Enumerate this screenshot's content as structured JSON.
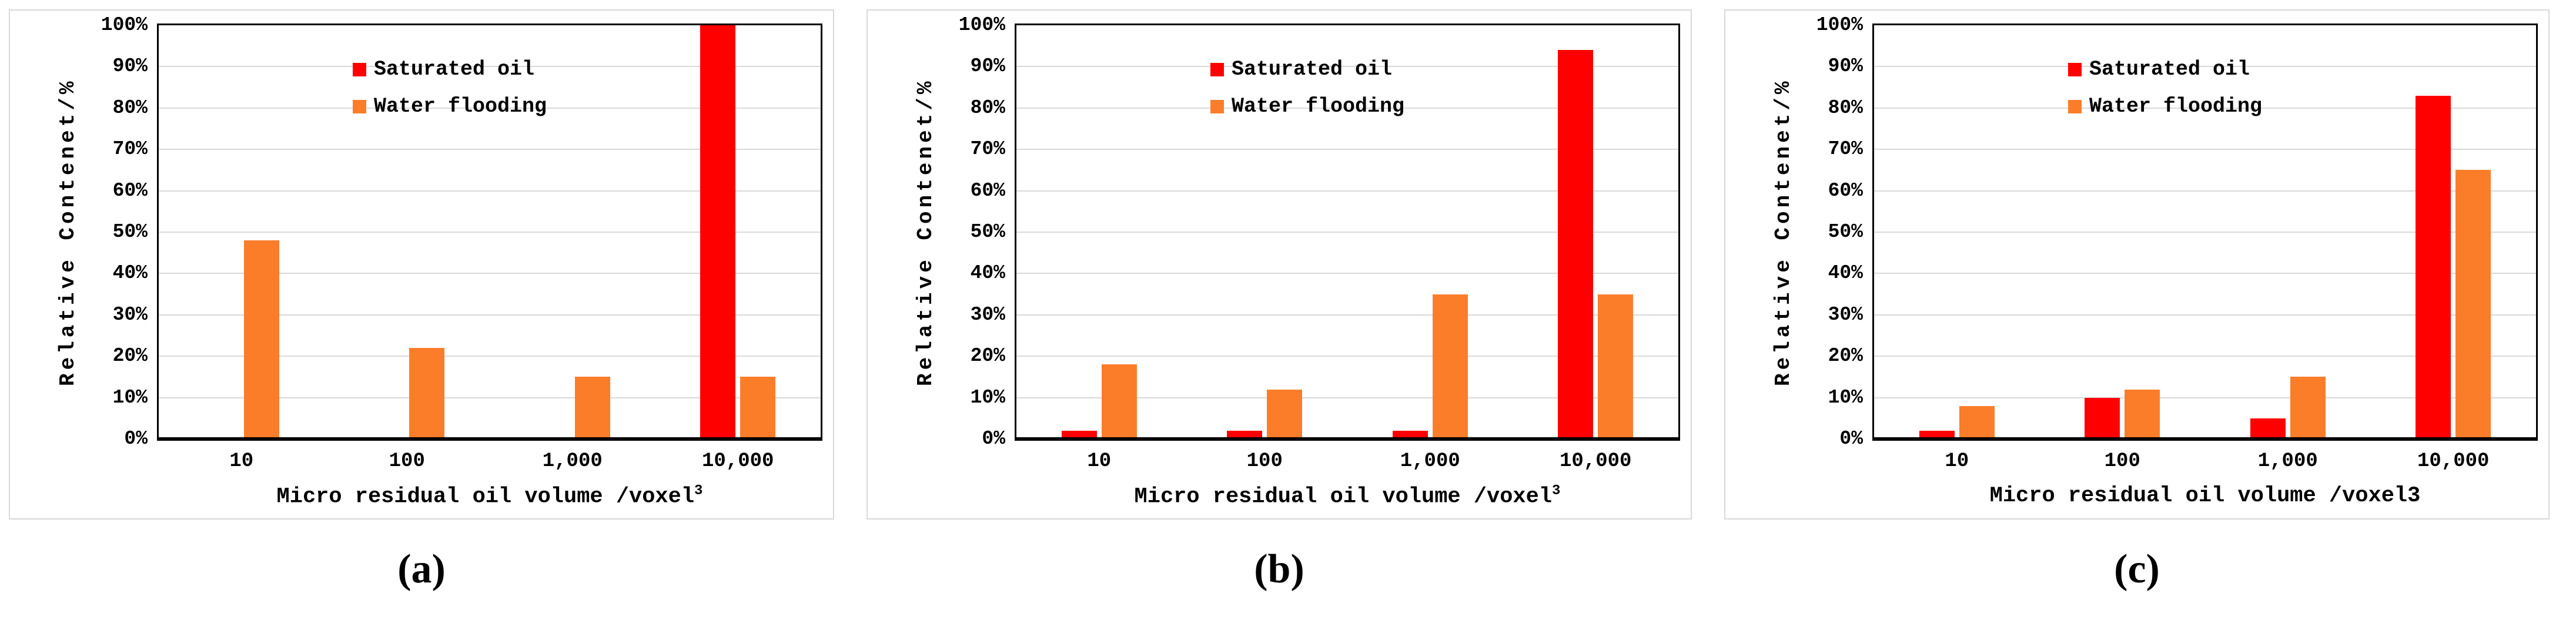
{
  "colors": {
    "saturated_oil": "#FF0000",
    "water_flooding": "#FB7D2A",
    "gridline": "#D9D9D9",
    "plot_border": "#000000",
    "panel_border": "#D9D9D9",
    "text": "#000000"
  },
  "chart_data": [
    {
      "type": "bar",
      "caption": "(a)",
      "title": "",
      "ylabel": "Relative Contenet/%",
      "xlabel": "Micro residual oil volume /voxel",
      "xlabel_sup": "3",
      "categories": [
        "10",
        "100",
        "1,000",
        "10,000"
      ],
      "series": [
        {
          "name": "Saturated oil",
          "color": "#FF0000",
          "values": [
            0,
            0,
            0,
            100
          ]
        },
        {
          "name": "Water flooding",
          "color": "#FB7D2A",
          "values": [
            48,
            22,
            15,
            15
          ]
        }
      ],
      "yticks": [
        "0%",
        "10%",
        "20%",
        "30%",
        "40%",
        "50%",
        "60%",
        "70%",
        "80%",
        "90%",
        "100%"
      ],
      "ylim": [
        0,
        100
      ],
      "grid": true,
      "legend_position": "inside-top-left"
    },
    {
      "type": "bar",
      "caption": "(b)",
      "title": "",
      "ylabel": "Relative Contenet/%",
      "xlabel": "Micro residual oil volume /voxel",
      "xlabel_sup": "3",
      "categories": [
        "10",
        "100",
        "1,000",
        "10,000"
      ],
      "series": [
        {
          "name": "Saturated oil",
          "color": "#FF0000",
          "values": [
            2,
            2,
            2,
            94
          ]
        },
        {
          "name": "Water flooding",
          "color": "#FB7D2A",
          "values": [
            18,
            12,
            35,
            35
          ]
        }
      ],
      "yticks": [
        "0%",
        "10%",
        "20%",
        "30%",
        "40%",
        "50%",
        "60%",
        "70%",
        "80%",
        "90%",
        "100%"
      ],
      "ylim": [
        0,
        100
      ],
      "grid": true,
      "legend_position": "inside-top-left"
    },
    {
      "type": "bar",
      "caption": "(c)",
      "title": "",
      "ylabel": "Relative Contenet/%",
      "xlabel": "Micro residual oil volume /voxel3",
      "xlabel_sup": "",
      "categories": [
        "10",
        "100",
        "1,000",
        "10,000"
      ],
      "series": [
        {
          "name": "Saturated oil",
          "color": "#FF0000",
          "values": [
            2,
            10,
            5,
            83
          ]
        },
        {
          "name": "Water flooding",
          "color": "#FB7D2A",
          "values": [
            8,
            12,
            15,
            65
          ]
        }
      ],
      "yticks": [
        "0%",
        "10%",
        "20%",
        "30%",
        "40%",
        "50%",
        "60%",
        "70%",
        "80%",
        "90%",
        "100%"
      ],
      "ylim": [
        0,
        100
      ],
      "grid": true,
      "legend_position": "inside-top-left"
    }
  ]
}
